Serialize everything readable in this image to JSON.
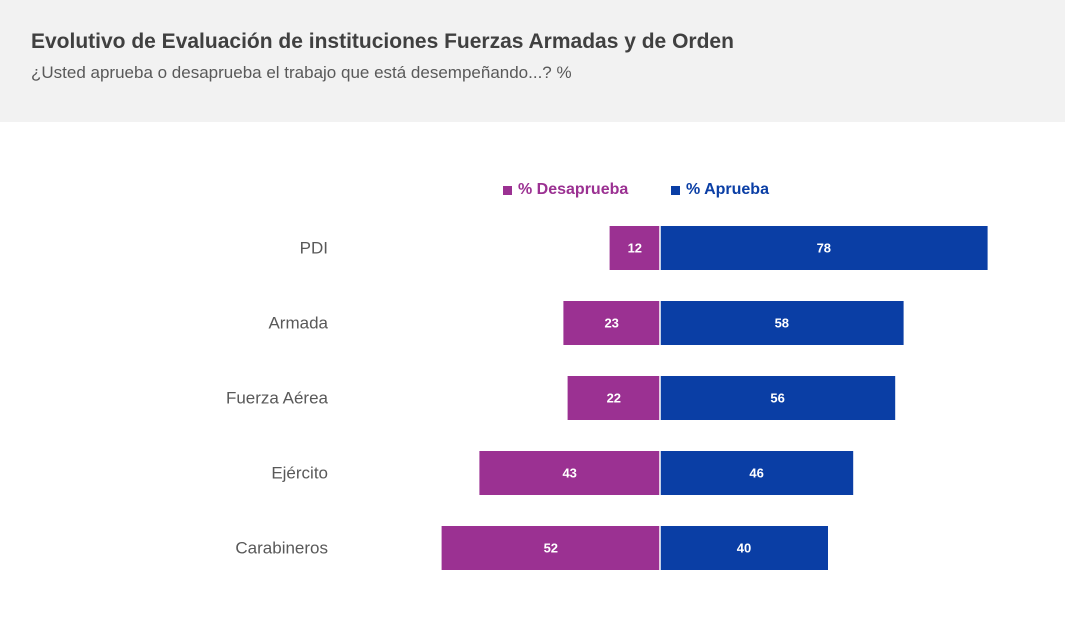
{
  "header": {
    "title": "Evolutivo de Evaluación de instituciones Fuerzas Armadas y de Orden",
    "subtitle": "¿Usted aprueba o desaprueba el trabajo que está desempeñando...? %"
  },
  "legend": {
    "disapprove_label": "% Desaprueba",
    "approve_label": "% Aprueba"
  },
  "colors": {
    "disapprove": "#9b3192",
    "approve": "#0a3ea5",
    "header_bg": "#f2f2f2"
  },
  "chart_data": {
    "type": "bar",
    "orientation": "horizontal-diverging",
    "categories": [
      "PDI",
      "Armada",
      "Fuerza Aérea",
      "Ejército",
      "Carabineros"
    ],
    "series": [
      {
        "name": "% Desaprueba",
        "values": [
          12,
          23,
          22,
          43,
          52
        ]
      },
      {
        "name": "% Aprueba",
        "values": [
          78,
          58,
          56,
          46,
          40
        ]
      }
    ],
    "legend_position": "top-center",
    "grid": false
  }
}
